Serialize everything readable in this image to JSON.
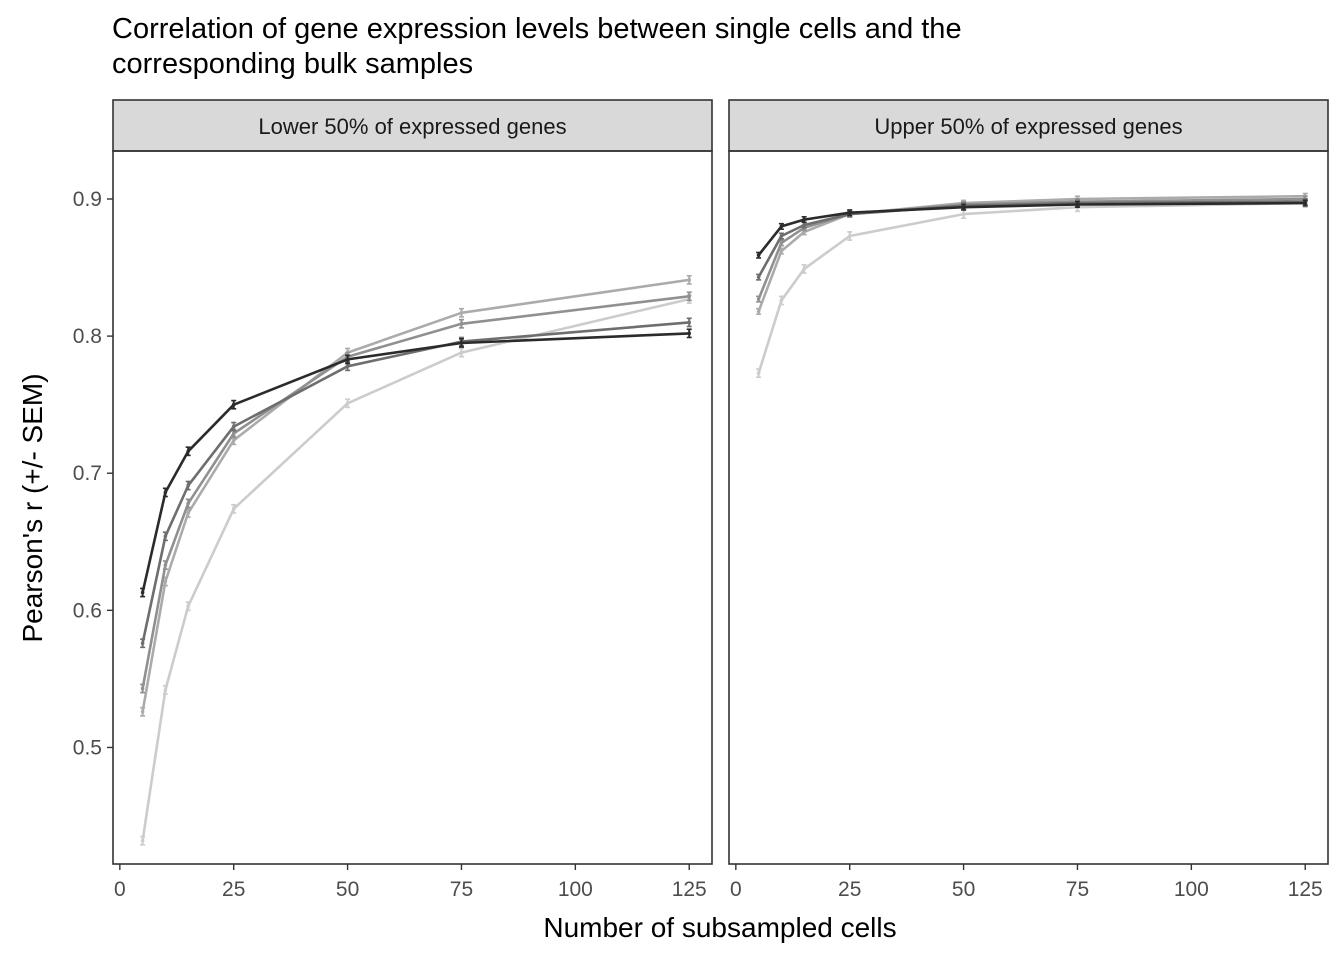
{
  "chart_data": {
    "type": "line",
    "title_lines": [
      "Correlation of gene expression levels between single cells and the",
      "corresponding bulk samples"
    ],
    "xlabel": "Number of subsampled cells",
    "ylabel": "Pearson's r (+/- SEM)",
    "x": [
      5,
      10,
      15,
      25,
      50,
      75,
      125
    ],
    "xlim": [
      -1.5,
      130
    ],
    "ylim": [
      0.415,
      0.935
    ],
    "x_ticks": [
      0,
      25,
      50,
      75,
      100,
      125
    ],
    "y_ticks": [
      0.5,
      0.6,
      0.7,
      0.8,
      0.9
    ],
    "x_tick_labels": [
      "0",
      "25",
      "50",
      "75",
      "100",
      "125"
    ],
    "y_tick_labels": [
      "0.5",
      "0.6",
      "0.7",
      "0.8",
      "0.9"
    ],
    "legend": "none",
    "grid": false,
    "colors": [
      "#2b2b2b",
      "#6e6e6e",
      "#909090",
      "#ababab",
      "#cccccc"
    ],
    "panels": [
      {
        "strip": "Lower 50% of expressed genes",
        "series": [
          {
            "values": [
              0.613,
              0.686,
              0.716,
              0.75,
              0.783,
              0.795,
              0.802
            ],
            "sem": 0.003
          },
          {
            "values": [
              0.576,
              0.654,
              0.691,
              0.734,
              0.778,
              0.796,
              0.81
            ],
            "sem": 0.003
          },
          {
            "values": [
              0.543,
              0.633,
              0.678,
              0.729,
              0.785,
              0.809,
              0.829
            ],
            "sem": 0.003
          },
          {
            "values": [
              0.526,
              0.621,
              0.671,
              0.724,
              0.788,
              0.817,
              0.841
            ],
            "sem": 0.003
          },
          {
            "values": [
              0.432,
              0.542,
              0.603,
              0.674,
              0.751,
              0.788,
              0.827
            ],
            "sem": 0.003
          }
        ]
      },
      {
        "strip": "Upper 50% of expressed genes",
        "series": [
          {
            "values": [
              0.859,
              0.88,
              0.885,
              0.89,
              0.894,
              0.896,
              0.897
            ],
            "sem": 0.002
          },
          {
            "values": [
              0.843,
              0.873,
              0.881,
              0.889,
              0.895,
              0.897,
              0.898
            ],
            "sem": 0.002
          },
          {
            "values": [
              0.827,
              0.868,
              0.879,
              0.889,
              0.896,
              0.898,
              0.9
            ],
            "sem": 0.002
          },
          {
            "values": [
              0.818,
              0.862,
              0.876,
              0.889,
              0.897,
              0.9,
              0.902
            ],
            "sem": 0.002
          },
          {
            "values": [
              0.773,
              0.826,
              0.849,
              0.873,
              0.889,
              0.894,
              0.897
            ],
            "sem": 0.003
          }
        ]
      }
    ]
  }
}
